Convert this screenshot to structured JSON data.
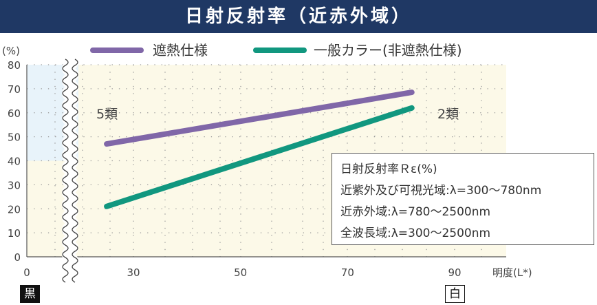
{
  "title": "日射反射率（近赤外域）",
  "badges": {
    "black": "黒",
    "white": "白"
  },
  "info": {
    "line1": "日射反射率Ｒε(%)",
    "line2": "近紫外及び可視光域:λ=300〜780nm",
    "line3": "近赤外域:λ=780〜2500nm",
    "line4": "全波長域:λ=300〜2500nm"
  },
  "chart_data": {
    "type": "line",
    "title": "日射反射率（近赤外域）",
    "xlabel": "明度(L*)",
    "ylabel": "(%)",
    "xlim": [
      0,
      100
    ],
    "ylim": [
      0,
      80
    ],
    "x_ticks": [
      0,
      30,
      50,
      70,
      90
    ],
    "y_ticks": [
      0,
      10,
      20,
      30,
      40,
      50,
      60,
      70,
      80
    ],
    "grid": true,
    "legend_position": "top",
    "regions": [
      {
        "label": "5類",
        "x": [
          0,
          30
        ],
        "y": [
          40,
          80
        ],
        "color": "#e8f3fa"
      },
      {
        "label": "2類",
        "x": [
          30,
          90
        ],
        "y": [
          0,
          80
        ],
        "color": "#fcf9e8"
      }
    ],
    "series": [
      {
        "name": "遮熱仕様",
        "color": "#8067a8",
        "x": [
          25,
          82
        ],
        "y": [
          47,
          68.5
        ]
      },
      {
        "name": "一般カラー(非遮熱仕様)",
        "color": "#11977f",
        "x": [
          25,
          82
        ],
        "y": [
          21,
          62
        ]
      }
    ]
  }
}
